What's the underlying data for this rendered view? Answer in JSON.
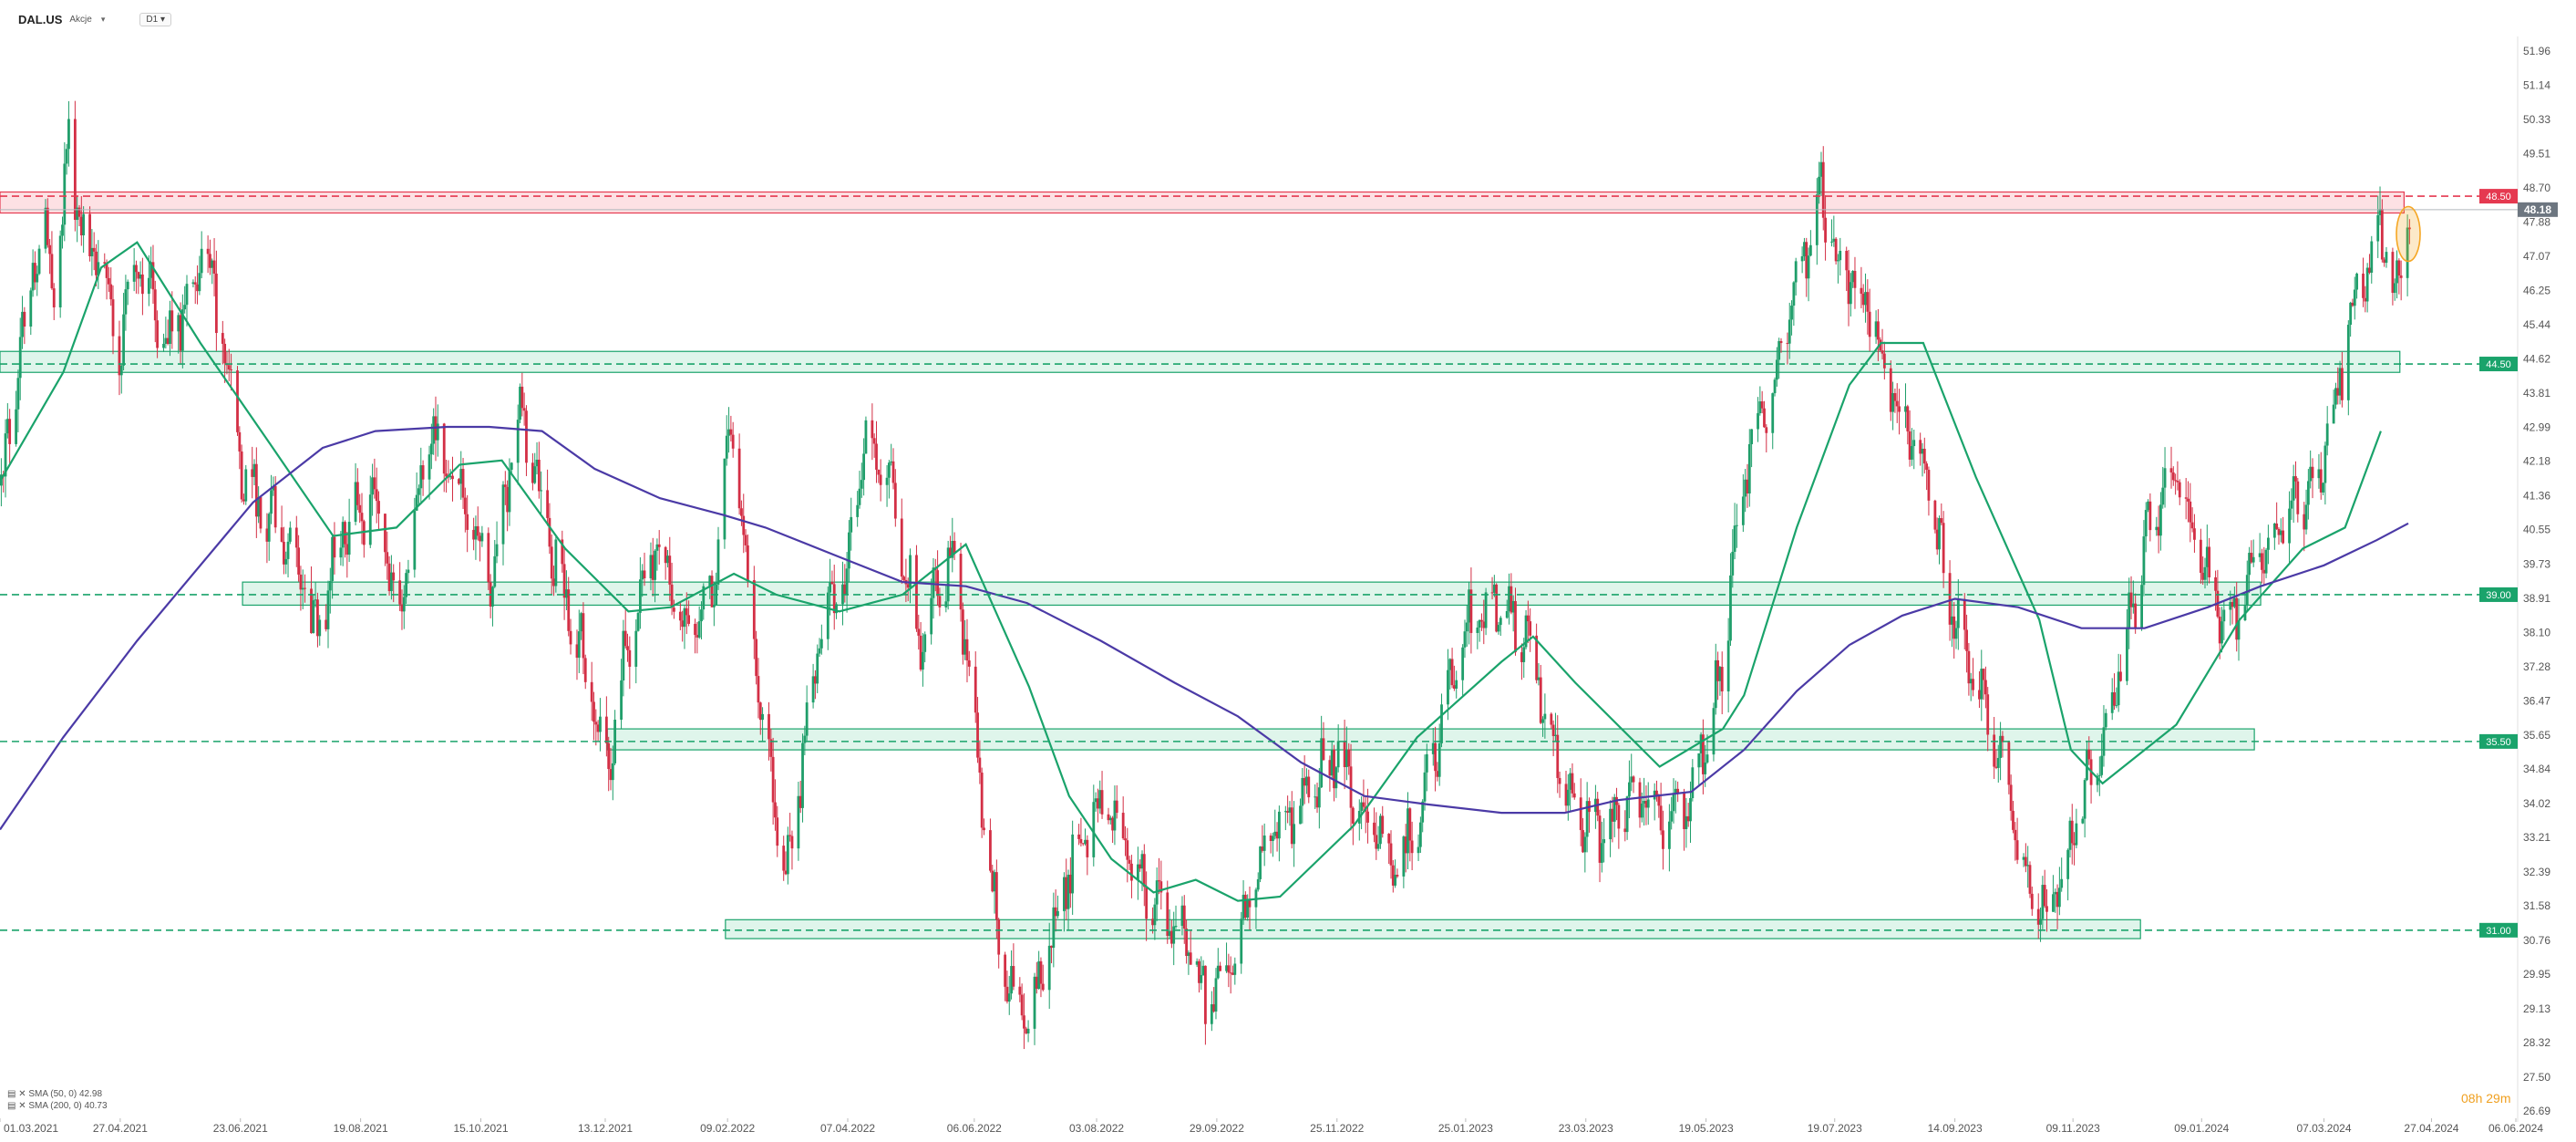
{
  "header": {
    "symbol": "DAL.US",
    "symbol_type": "Akcje",
    "timeframe": "D1"
  },
  "indicators": [
    {
      "label": "SMA (50, 0)",
      "value": "42.98",
      "color": "#1aa36b"
    },
    {
      "label": "SMA (200, 0)",
      "value": "40.73",
      "color": "#4b3aa6"
    }
  ],
  "countdown": "08h 29m",
  "colors": {
    "bull": "#1f9e6a",
    "bear": "#d32f45",
    "resistance": "#e53950",
    "support": "#1aa36b",
    "sma50": "#1aa36b",
    "sma200": "#4b3aa6",
    "price_tag": "#6d7680",
    "highlight": "#f5a623"
  },
  "chart_data": {
    "type": "candlestick",
    "title": "",
    "xlabel": "",
    "ylabel": "",
    "x_range": [
      "2021-03-01",
      "2024-06-06"
    ],
    "ylim": [
      26.69,
      52.5
    ],
    "y_ticks": [
      "51.96",
      "51.14",
      "50.33",
      "49.51",
      "48.70",
      "47.88",
      "47.07",
      "46.25",
      "45.44",
      "44.62",
      "43.81",
      "42.99",
      "42.18",
      "41.36",
      "40.55",
      "39.73",
      "38.91",
      "38.10",
      "37.28",
      "36.47",
      "35.65",
      "34.84",
      "34.02",
      "33.21",
      "32.39",
      "31.58",
      "30.76",
      "29.95",
      "29.13",
      "28.32",
      "27.50",
      "26.69"
    ],
    "x_ticks": [
      "01.03.2021",
      "27.04.2021",
      "23.06.2021",
      "19.08.2021",
      "15.10.2021",
      "13.12.2021",
      "09.02.2022",
      "07.04.2022",
      "06.06.2022",
      "03.08.2022",
      "29.09.2022",
      "25.11.2022",
      "25.01.2023",
      "23.03.2023",
      "19.05.2023",
      "19.07.2023",
      "14.09.2023",
      "09.11.2023",
      "09.01.2024",
      "07.03.2024",
      "27.04.2024",
      "06.06.2024"
    ],
    "current_price": "48.18",
    "levels": [
      {
        "label": "48.50",
        "value": 48.5,
        "kind": "resistance",
        "zone": [
          48.1,
          48.6
        ],
        "from": "2021-03-01",
        "to": "2024-04-14"
      },
      {
        "label": "44.50",
        "value": 44.5,
        "kind": "support",
        "zone": [
          44.3,
          44.8
        ],
        "from": "2021-03-01",
        "to": "2024-04-12"
      },
      {
        "label": "39.00",
        "value": 39.0,
        "kind": "support",
        "zone": [
          38.75,
          39.3
        ],
        "from": "2021-06-24",
        "to": "2024-02-06"
      },
      {
        "label": "35.50",
        "value": 35.5,
        "kind": "support",
        "zone": [
          35.3,
          35.8
        ],
        "from": "2021-12-14",
        "to": "2024-02-03"
      },
      {
        "label": "31.00",
        "value": 31.0,
        "kind": "support",
        "zone": [
          30.8,
          31.25
        ],
        "from": "2022-02-08",
        "to": "2023-12-11"
      }
    ],
    "series": [
      {
        "name": "SMA (50, 0)",
        "style": "line",
        "x": [
          "2021-03-01",
          "2021-03-31",
          "2021-04-18",
          "2021-05-05",
          "2021-06-04",
          "2021-07-07",
          "2021-08-06",
          "2021-09-05",
          "2021-10-05",
          "2021-10-25",
          "2021-11-24",
          "2021-12-24",
          "2022-01-13",
          "2022-02-12",
          "2022-03-04",
          "2022-04-03",
          "2022-05-03",
          "2022-06-02",
          "2022-07-02",
          "2022-07-21",
          "2022-08-10",
          "2022-08-30",
          "2022-09-19",
          "2022-10-09",
          "2022-10-29",
          "2022-12-03",
          "2023-01-02",
          "2023-02-11",
          "2023-02-26",
          "2023-03-18",
          "2023-04-27",
          "2023-05-27",
          "2023-06-06",
          "2023-07-01",
          "2023-07-26",
          "2023-08-10",
          "2023-08-30",
          "2023-09-24",
          "2023-10-24",
          "2023-11-08",
          "2023-11-23",
          "2023-12-28",
          "2024-01-27",
          "2024-02-26",
          "2024-03-17",
          "2024-04-03"
        ],
        "values": [
          41.7,
          44.3,
          46.8,
          47.4,
          45.0,
          42.6,
          40.4,
          40.6,
          42.1,
          42.2,
          40.1,
          38.6,
          38.7,
          39.5,
          39.0,
          38.6,
          39.0,
          40.2,
          36.8,
          34.2,
          32.7,
          31.9,
          32.2,
          31.7,
          31.8,
          33.5,
          35.6,
          37.4,
          38.0,
          36.9,
          34.9,
          35.8,
          36.6,
          40.6,
          44.0,
          45.0,
          45.0,
          41.8,
          38.4,
          35.3,
          34.5,
          35.9,
          38.4,
          40.1,
          40.6,
          42.9
        ]
      },
      {
        "name": "SMA (200, 0)",
        "style": "line",
        "x": [
          "2021-03-01",
          "2021-03-31",
          "2021-05-05",
          "2021-06-29",
          "2021-08-01",
          "2021-08-26",
          "2021-09-29",
          "2021-10-19",
          "2021-11-13",
          "2021-12-08",
          "2022-01-08",
          "2022-02-07",
          "2022-02-27",
          "2022-04-03",
          "2022-05-03",
          "2022-06-02",
          "2022-07-01",
          "2022-08-05",
          "2022-09-09",
          "2022-10-09",
          "2022-11-08",
          "2022-12-08",
          "2023-01-07",
          "2023-02-11",
          "2023-03-13",
          "2023-04-07",
          "2023-05-12",
          "2023-06-06",
          "2023-07-01",
          "2023-07-26",
          "2023-08-20",
          "2023-09-14",
          "2023-10-14",
          "2023-11-13",
          "2023-12-13",
          "2024-01-12",
          "2024-02-06",
          "2024-03-07",
          "2024-04-01",
          "2024-04-16"
        ],
        "values": [
          33.4,
          35.6,
          37.9,
          41.2,
          42.5,
          42.9,
          43.0,
          43.0,
          42.9,
          42.0,
          41.3,
          40.9,
          40.6,
          39.9,
          39.3,
          39.2,
          38.8,
          37.9,
          36.9,
          36.1,
          35.0,
          34.2,
          34.0,
          33.8,
          33.8,
          34.1,
          34.3,
          35.3,
          36.7,
          37.8,
          38.5,
          38.9,
          38.7,
          38.2,
          38.2,
          38.7,
          39.2,
          39.7,
          40.3,
          40.7
        ]
      }
    ]
  }
}
